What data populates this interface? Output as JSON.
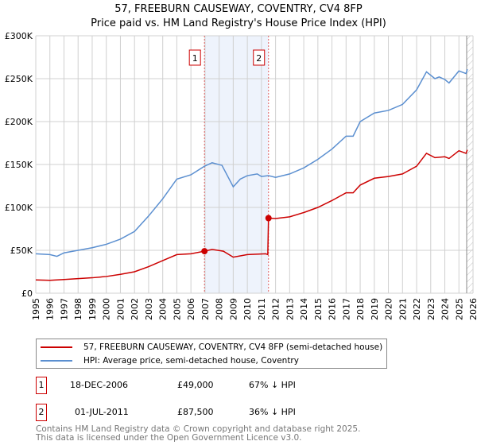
{
  "chart_data": {
    "type": "line",
    "title": "57, FREEBURN CAUSEWAY, COVENTRY, CV4 8FP",
    "subtitle": "Price paid vs. HM Land Registry's House Price Index (HPI)",
    "xlim": [
      1995,
      2026
    ],
    "ylim": [
      0,
      300000
    ],
    "x_ticks": [
      "1995",
      "1996",
      "1997",
      "1998",
      "1999",
      "2000",
      "2001",
      "2002",
      "2003",
      "2004",
      "2005",
      "2006",
      "2007",
      "2008",
      "2009",
      "2010",
      "2011",
      "2012",
      "2013",
      "2014",
      "2015",
      "2016",
      "2017",
      "2018",
      "2019",
      "2020",
      "2021",
      "2022",
      "2023",
      "2024",
      "2025",
      "2026"
    ],
    "y_ticks": [
      {
        "v": 0,
        "label": "£0"
      },
      {
        "v": 50000,
        "label": "£50K"
      },
      {
        "v": 100000,
        "label": "£100K"
      },
      {
        "v": 150000,
        "label": "£150K"
      },
      {
        "v": 200000,
        "label": "£200K"
      },
      {
        "v": 250000,
        "label": "£250K"
      },
      {
        "v": 300000,
        "label": "£300K"
      }
    ],
    "grid": true,
    "shaded_range": [
      2006.96,
      2011.5
    ],
    "forecast_start": 2025.55,
    "series": [
      {
        "name": "57, FREEBURN CAUSEWAY, COVENTRY, CV4 8FP (semi-detached house)",
        "color": "#cc0000",
        "points": [
          [
            1995,
            15500
          ],
          [
            1996,
            15000
          ],
          [
            1997,
            16000
          ],
          [
            1998,
            17000
          ],
          [
            1999,
            18000
          ],
          [
            2000,
            19500
          ],
          [
            2001,
            22000
          ],
          [
            2002,
            25000
          ],
          [
            2003,
            31000
          ],
          [
            2004,
            38000
          ],
          [
            2005,
            45000
          ],
          [
            2006,
            46000
          ],
          [
            2006.96,
            49000
          ],
          [
            2007.5,
            51000
          ],
          [
            2008.3,
            49000
          ],
          [
            2009,
            42000
          ],
          [
            2010,
            45000
          ],
          [
            2011.3,
            46000
          ],
          [
            2011.45,
            45000
          ],
          [
            2011.5,
            87500
          ],
          [
            2012,
            87000
          ],
          [
            2013,
            89000
          ],
          [
            2014,
            94000
          ],
          [
            2015,
            100000
          ],
          [
            2016,
            108000
          ],
          [
            2017,
            117000
          ],
          [
            2017.5,
            117000
          ],
          [
            2018,
            126000
          ],
          [
            2019,
            134000
          ],
          [
            2020,
            136000
          ],
          [
            2021,
            139000
          ],
          [
            2022,
            148000
          ],
          [
            2022.7,
            163000
          ],
          [
            2023.3,
            158000
          ],
          [
            2024,
            159000
          ],
          [
            2024.3,
            157000
          ],
          [
            2025,
            166000
          ],
          [
            2025.5,
            163000
          ],
          [
            2025.6,
            167000
          ]
        ]
      },
      {
        "name": "HPI: Average price, semi-detached house, Coventry",
        "color": "#5b8fd0",
        "points": [
          [
            1995,
            46000
          ],
          [
            1996,
            45000
          ],
          [
            1996.5,
            43000
          ],
          [
            1997,
            47000
          ],
          [
            1998,
            50000
          ],
          [
            1999,
            53000
          ],
          [
            2000,
            57000
          ],
          [
            2001,
            63000
          ],
          [
            2002,
            72000
          ],
          [
            2003,
            90000
          ],
          [
            2004,
            110000
          ],
          [
            2005,
            133000
          ],
          [
            2006,
            138000
          ],
          [
            2006.96,
            148000
          ],
          [
            2007.5,
            152000
          ],
          [
            2008.2,
            149000
          ],
          [
            2009,
            124000
          ],
          [
            2009.5,
            133000
          ],
          [
            2010,
            137000
          ],
          [
            2010.7,
            139000
          ],
          [
            2011,
            136000
          ],
          [
            2011.5,
            137000
          ],
          [
            2012,
            135000
          ],
          [
            2013,
            139000
          ],
          [
            2014,
            146000
          ],
          [
            2015,
            156000
          ],
          [
            2016,
            168000
          ],
          [
            2017,
            183000
          ],
          [
            2017.5,
            183000
          ],
          [
            2018,
            200000
          ],
          [
            2019,
            210000
          ],
          [
            2020,
            213000
          ],
          [
            2021,
            220000
          ],
          [
            2022,
            237000
          ],
          [
            2022.7,
            258000
          ],
          [
            2023.3,
            250000
          ],
          [
            2023.6,
            252000
          ],
          [
            2024,
            249000
          ],
          [
            2024.3,
            245000
          ],
          [
            2025,
            259000
          ],
          [
            2025.5,
            256000
          ],
          [
            2025.6,
            261000
          ]
        ]
      }
    ],
    "markers": [
      {
        "label": "1",
        "x": 2006.96,
        "y": 49000
      },
      {
        "label": "2",
        "x": 2011.5,
        "y": 87500
      }
    ]
  },
  "legend": {
    "property": "57, FREEBURN CAUSEWAY, COVENTRY, CV4 8FP (semi-detached house)",
    "hpi": "HPI: Average price, semi-detached house, Coventry"
  },
  "transactions": [
    {
      "num": "1",
      "date": "18-DEC-2006",
      "price": "£49,000",
      "hpi": "67% ↓ HPI"
    },
    {
      "num": "2",
      "date": "01-JUL-2011",
      "price": "£87,500",
      "hpi": "36% ↓ HPI"
    }
  ],
  "footer": {
    "line1": "Contains HM Land Registry data © Crown copyright and database right 2025.",
    "line2": "This data is licensed under the Open Government Licence v3.0."
  }
}
